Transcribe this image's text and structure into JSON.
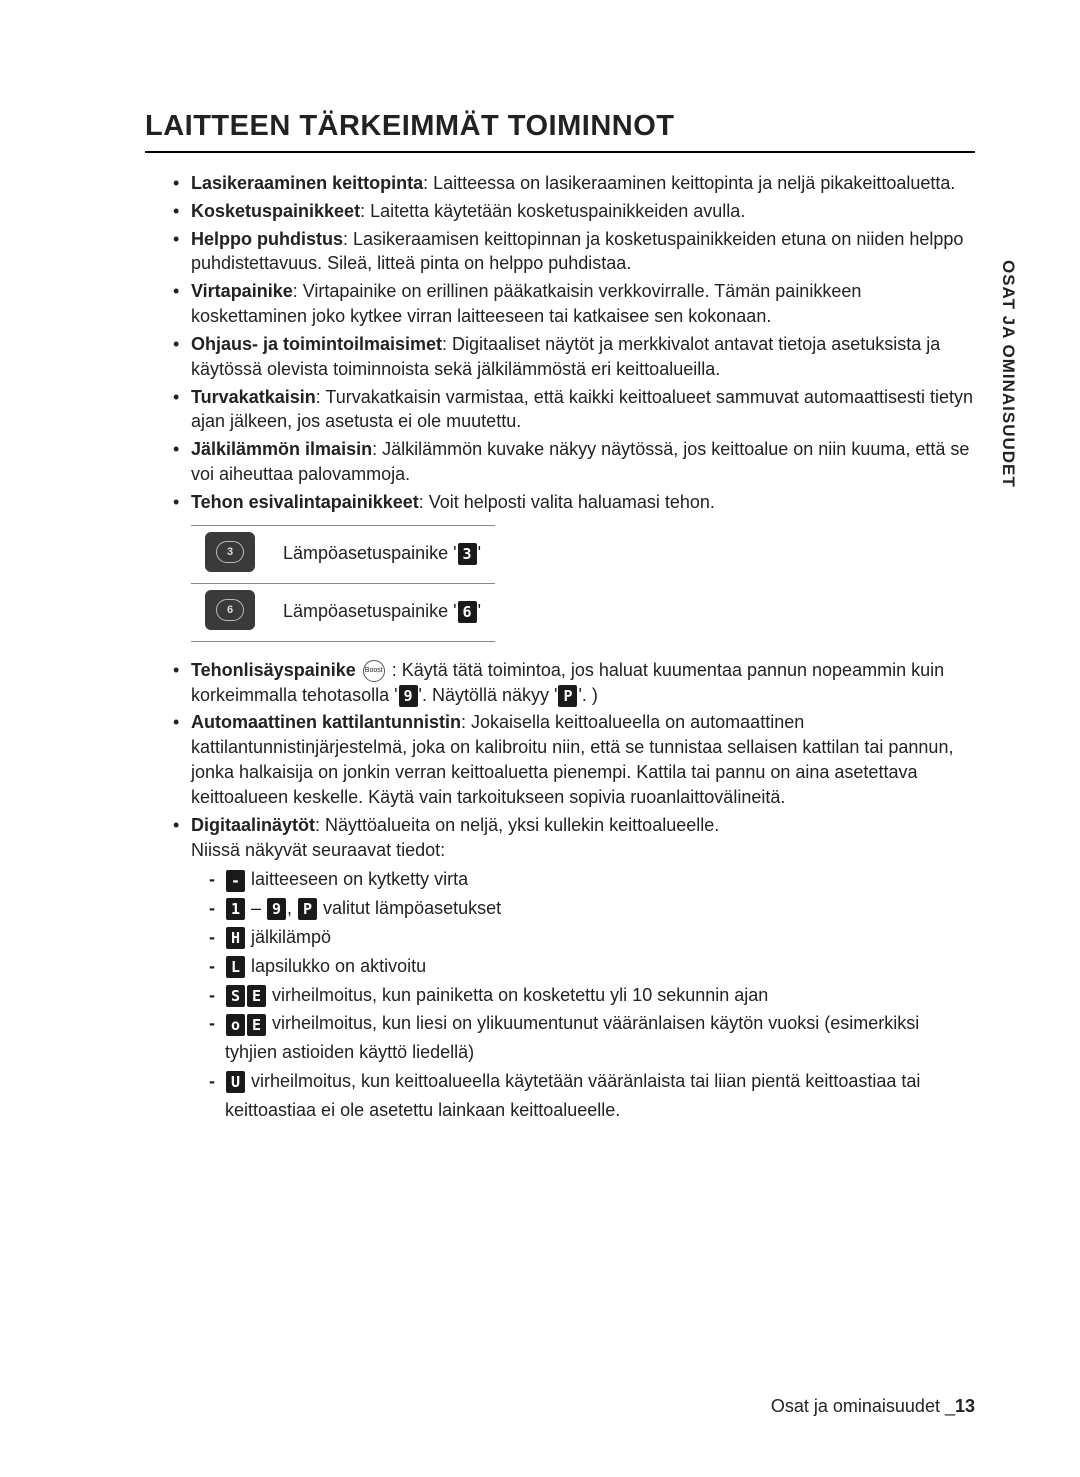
{
  "vertical_tab": "OSAT JA OMINAISUUDET",
  "heading": "LAITTEEN TÄRKEIMMÄT TOIMINNOT",
  "bullets": [
    {
      "bold": "Lasikeraaminen keittopinta",
      "rest": ": Laitteessa on lasikeraaminen keittopinta ja neljä pikakeittoaluetta."
    },
    {
      "bold": "Kosketuspainikkeet",
      "rest": ": Laitetta käytetään kosketuspainikkeiden avulla."
    },
    {
      "bold": "Helppo puhdistus",
      "rest": ": Lasikeraamisen keittopinnan ja kosketuspainikkeiden etuna on niiden helppo puhdistettavuus. Sileä, litteä pinta on helppo puhdistaa."
    },
    {
      "bold": "Virtapainike",
      "rest": ": Virtapainike on erillinen pääkatkaisin verkkovirralle. Tämän painikkeen koskettaminen joko kytkee virran laitteeseen tai katkaisee sen kokonaan."
    },
    {
      "bold": "Ohjaus- ja toimintoilmaisimet",
      "rest": ": Digitaaliset näytöt ja merkkivalot antavat tietoja asetuksista ja käytössä olevista toiminnoista sekä jälkilämmöstä eri keittoalueilla."
    },
    {
      "bold": "Turvakatkaisin",
      "rest": ": Turvakatkaisin varmistaa, että kaikki keittoalueet sammuvat automaattisesti tietyn ajan jälkeen, jos asetusta ei ole muutettu."
    },
    {
      "bold": "Jälkilämmön ilmaisin",
      "rest": ": Jälkilämmön kuvake näkyy näytössä, jos keittoalue on niin kuuma, että se voi aiheuttaa palovammoja."
    },
    {
      "bold": "Tehon esivalintapainikkeet",
      "rest": ": Voit helposti valita haluamasi tehon."
    }
  ],
  "button_table": {
    "rows": [
      {
        "num": "3",
        "label_prefix": "Lämpöasetuspainike '",
        "seg": "3",
        "label_suffix": "'"
      },
      {
        "num": "6",
        "label_prefix": "Lämpöasetuspainike '",
        "seg": "6",
        "label_suffix": "'"
      }
    ]
  },
  "bullets2": [
    {
      "bold": "Tehonlisäyspainike",
      "boost_label": "Boost",
      "mid1": " : Käytä tätä toimintoa, jos haluat kuumentaa pannun nopeammin kuin korkeimmalla tehotasolla '",
      "seg1": "9",
      "mid2": "'. Näytöllä näkyy '",
      "seg2": "P",
      "mid3": "'. )"
    },
    {
      "bold": "Automaattinen kattilantunnistin",
      "rest": ": Jokaisella keittoalueella on automaattinen kattilantunnistinjärjestelmä, joka on kalibroitu niin, että se tunnistaa sellaisen kattilan tai pannun, jonka halkaisija on jonkin verran keittoaluetta pienempi. Kattila tai pannu on aina asetettava keittoalueen keskelle. Käytä vain tarkoitukseen sopivia ruoanlaittovälineitä."
    },
    {
      "bold": "Digitaalinäytöt",
      "rest": ": Näyttöalueita on neljä, yksi kullekin keittoalueelle.",
      "rest2": "Niissä näkyvät seuraavat tiedot:"
    }
  ],
  "sub_items": [
    {
      "segs": [
        "-"
      ],
      "text": " laitteeseen on kytketty virta"
    },
    {
      "segs": [
        "1"
      ],
      "mid": " – ",
      "segs2": [
        "9"
      ],
      "comma": ", ",
      "segs3": [
        "P"
      ],
      "text": " valitut lämpöasetukset"
    },
    {
      "segs": [
        "H"
      ],
      "text": " jälkilämpö"
    },
    {
      "segs": [
        "L"
      ],
      "text": " lapsilukko on aktivoitu"
    },
    {
      "segs": [
        "S",
        "E"
      ],
      "text": " virheilmoitus, kun painiketta on kosketettu yli 10 sekunnin ajan"
    },
    {
      "segs": [
        "o",
        "E"
      ],
      "text": " virheilmoitus, kun liesi on ylikuumentunut vääränlaisen käytön vuoksi (esimerkiksi tyhjien astioiden käyttö liedellä)"
    },
    {
      "segs": [
        "U"
      ],
      "text": " virheilmoitus, kun keittoalueella käytetään vääränlaista tai liian pientä keittoastiaa tai keittoastiaa ei ole asetettu lainkaan keittoalueelle."
    }
  ],
  "footer": {
    "section": "Osat ja ominaisuudet _",
    "page": "13"
  }
}
